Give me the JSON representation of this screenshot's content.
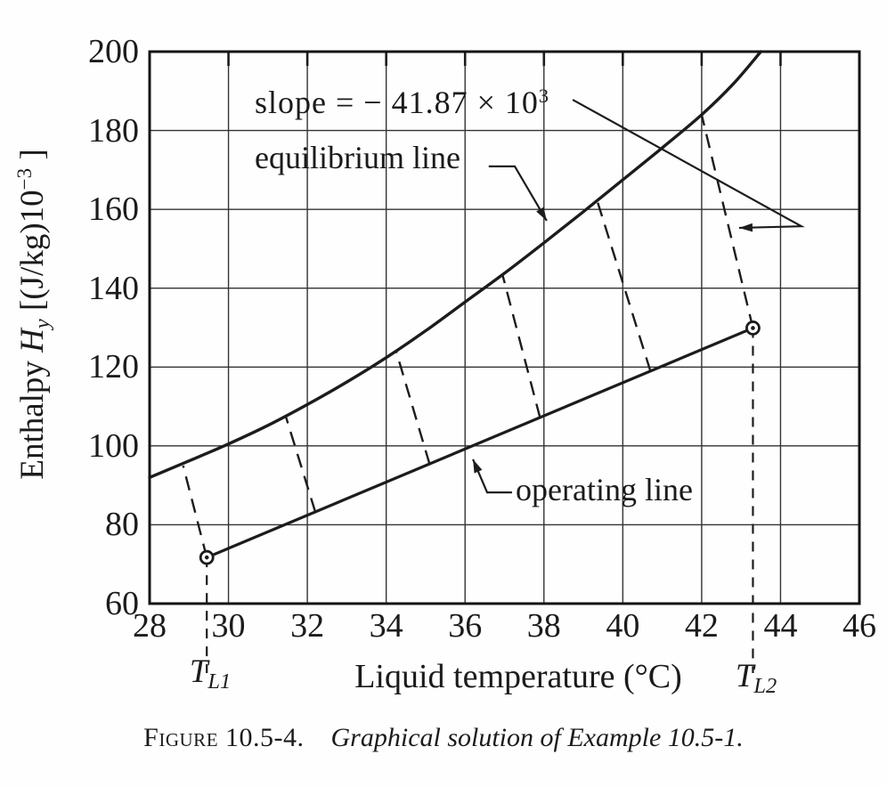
{
  "y_axis": {
    "label_pre": "Enthalpy ",
    "label_symbol": "H",
    "label_symbol_sub": "y",
    "label_mid": " [(J/kg)10",
    "label_sup": "−3",
    "label_close": " ]"
  },
  "x_axis": {
    "label": "Liquid temperature (°C)"
  },
  "annotations": {
    "slope_text": "slope = − 41.87 × 10",
    "slope_sup": "3",
    "equilibrium_label": "equilibrium line",
    "operating_label": "operating line",
    "tl1_base": "T",
    "tl1_sub": "L1",
    "tl2_base": "T",
    "tl2_sub": "L2"
  },
  "caption": {
    "label": "Figure 10.5-4.",
    "text": "Graphical solution of Example 10.5-1."
  },
  "chart_data": {
    "type": "line",
    "title": "Graphical solution of Example 10.5-1",
    "xlabel": "Liquid temperature (°C)",
    "ylabel": "Enthalpy Hy [(J/kg)×10⁻³]",
    "xlim": [
      28,
      46
    ],
    "ylim": [
      60,
      200
    ],
    "x_ticks": [
      28,
      30,
      32,
      34,
      36,
      38,
      40,
      42,
      44,
      46
    ],
    "y_ticks": [
      60,
      80,
      100,
      120,
      140,
      160,
      180,
      200
    ],
    "grid": true,
    "legend_position": "none",
    "series": [
      {
        "name": "equilibrium line",
        "style": "solid-curve",
        "points": [
          [
            28,
            92
          ],
          [
            29,
            96.2
          ],
          [
            30,
            100.5
          ],
          [
            31,
            105.2
          ],
          [
            32,
            110.5
          ],
          [
            33,
            116.2
          ],
          [
            34,
            122.4
          ],
          [
            35,
            129.2
          ],
          [
            36,
            136.5
          ],
          [
            37,
            143.8
          ],
          [
            38,
            151.5
          ],
          [
            39,
            159.4
          ],
          [
            40,
            167.5
          ],
          [
            41,
            175.6
          ],
          [
            42,
            184
          ],
          [
            42.8,
            191.8
          ],
          [
            43.5,
            200
          ]
        ]
      },
      {
        "name": "operating line",
        "style": "solid-straight",
        "endpoint_markers": true,
        "points": [
          [
            29.45,
            71.7
          ],
          [
            43.3,
            129.9
          ]
        ]
      }
    ],
    "tie_lines": {
      "slope_value": "-41.87×10³",
      "segments": [
        [
          [
            29.45,
            71.7
          ],
          [
            28.85,
            95.0
          ]
        ],
        [
          [
            32.2,
            83.3
          ],
          [
            31.45,
            107.6
          ]
        ],
        [
          [
            35.1,
            95.4
          ],
          [
            34.25,
            124.1
          ]
        ],
        [
          [
            37.9,
            107.2
          ],
          [
            36.95,
            143.4
          ]
        ],
        [
          [
            40.7,
            119.0
          ],
          [
            39.35,
            162.2
          ]
        ],
        [
          [
            43.3,
            129.9
          ],
          [
            42.0,
            184.0
          ]
        ]
      ]
    },
    "drop_lines": [
      {
        "x": 29.45,
        "from_y": 71.7,
        "label": "TL1"
      },
      {
        "x": 43.3,
        "from_y": 129.9,
        "label": "TL2"
      }
    ],
    "leaders": [
      {
        "for": "slope",
        "points": [
          [
            38.73,
            187.8
          ],
          [
            44.53,
            155.7
          ],
          [
            42.95,
            155.3
          ]
        ]
      },
      {
        "for": "equilibrium",
        "points": [
          [
            36.6,
            170.9
          ],
          [
            37.26,
            170.9
          ],
          [
            38.07,
            157.1
          ]
        ]
      },
      {
        "for": "operating",
        "points": [
          [
            37.19,
            88.2
          ],
          [
            36.56,
            88.2
          ],
          [
            36.2,
            96.6
          ]
        ]
      }
    ]
  }
}
